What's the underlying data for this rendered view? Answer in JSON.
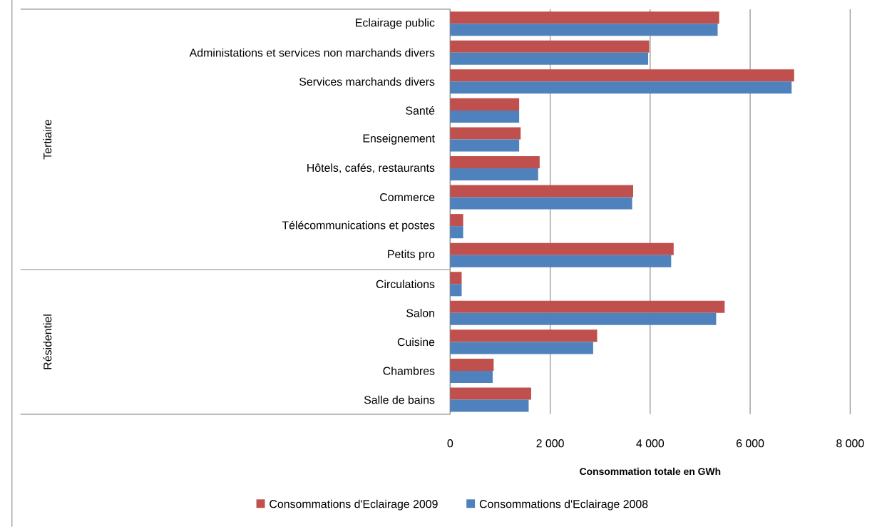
{
  "chart_data": {
    "type": "bar",
    "orientation": "horizontal",
    "xlabel": "Consommation totale en GWh",
    "categories": [
      "Eclairage public",
      "Administations et services non marchands divers",
      "Services marchands divers",
      "Santé",
      "Enseignement",
      "Hôtels, cafés, restaurants",
      "Commerce",
      "Télécommunications et postes",
      "Petits pro",
      "Circulations",
      "Salon",
      "Cuisine",
      "Chambres",
      "Salle de bains"
    ],
    "series": [
      {
        "name": "Consommations d'Eclairage 2009",
        "color": "#c0504d",
        "values": [
          5380,
          3980,
          6880,
          1380,
          1410,
          1790,
          3660,
          260,
          4470,
          230,
          5490,
          2940,
          870,
          1620
        ]
      },
      {
        "name": "Consommations d'Eclairage 2008",
        "color": "#4f81bd",
        "values": [
          5350,
          3960,
          6830,
          1380,
          1380,
          1760,
          3640,
          260,
          4420,
          230,
          5320,
          2860,
          850,
          1570
        ]
      }
    ],
    "xlim": [
      0,
      8000
    ],
    "xticks": [
      0,
      {
        "value": 2000,
        "label": "2 000"
      },
      {
        "value": 4000,
        "label": "4 000"
      },
      {
        "value": 6000,
        "label": "6 000"
      },
      {
        "value": 8000,
        "label": "8 000"
      }
    ],
    "grid": "x",
    "legend": "bottom",
    "annotations": [
      "Tertiaire",
      "Résidentiel"
    ]
  }
}
